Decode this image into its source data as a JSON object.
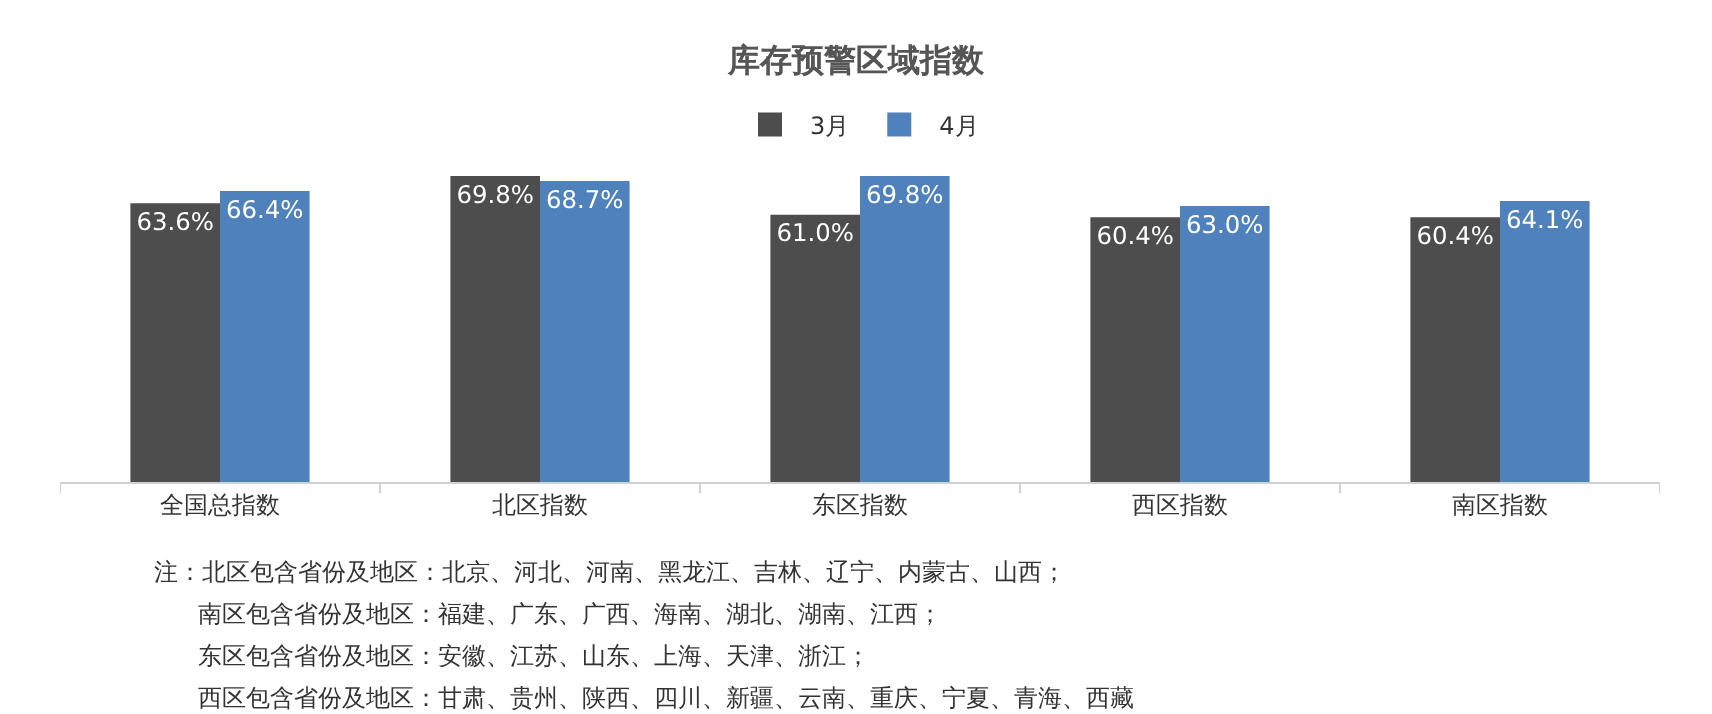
{
  "chart_data": {
    "type": "bar",
    "title": "库存预警区域指数",
    "categories": [
      "全国总指数",
      "北区指数",
      "东区指数",
      "西区指数",
      "南区指数"
    ],
    "series": [
      {
        "name": "3月",
        "color": "#4d4d4d",
        "values": [
          63.6,
          69.8,
          61.0,
          60.4,
          60.4
        ],
        "value_labels": [
          "63.6%",
          "69.8%",
          "61.0%",
          "60.4%",
          "60.4%"
        ]
      },
      {
        "name": "4月",
        "color": "#4f81bd",
        "values": [
          66.4,
          68.7,
          69.8,
          63.0,
          64.1
        ],
        "value_labels": [
          "66.4%",
          "68.7%",
          "69.8%",
          "63.0%",
          "64.1%"
        ]
      }
    ],
    "tick_labels": "x",
    "legend": "top",
    "annotations": [
      "注：北区包含省份及地区：北京、河北、河南、黑龙江、吉林、辽宁、内蒙古、山西；",
      "南区包含省份及地区：福建、广东、广西、海南、湖北、湖南、江西；",
      "东区包含省份及地区：安徽、江苏、山东、上海、天津、浙江；",
      "西区包含省份及地区：甘肃、贵州、陕西、四川、新疆、云南、重庆、宁夏、青海、西藏"
    ]
  }
}
